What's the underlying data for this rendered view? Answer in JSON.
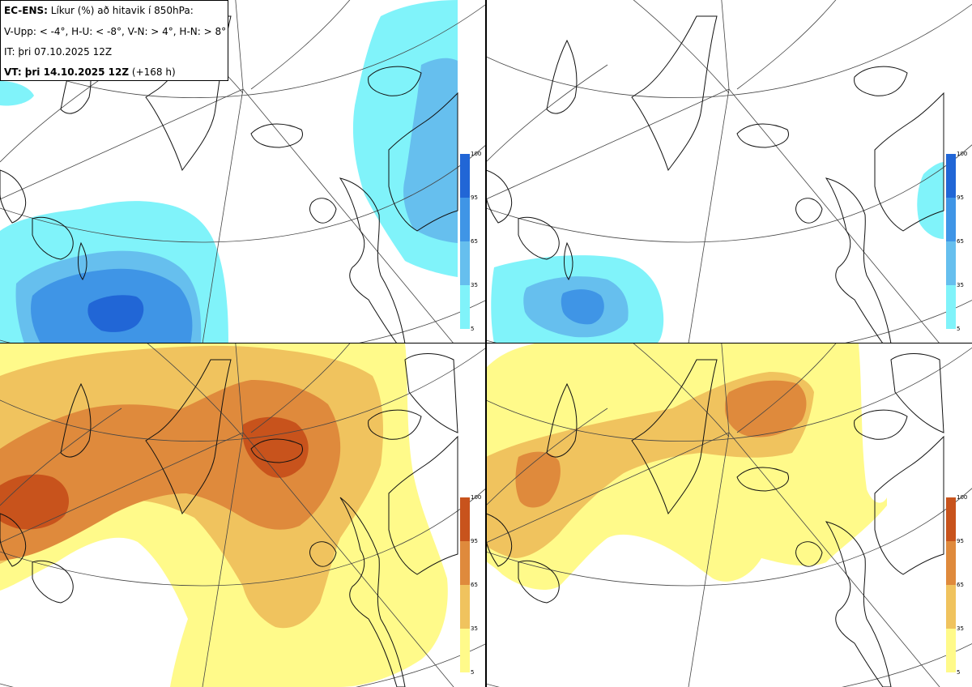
{
  "header": {
    "title_bold": "EC-ENS:",
    "title_rest": " Líkur (%) að hitavik í 850hPa:",
    "legend_line": "V-Upp: < -4°, H-U: < -8°, V-N: > 4°, H-N: > 8°",
    "initial_time": "IT: þri 07.10.2025 12Z",
    "valid_time_bold": "VT: þri 14.10.2025 12Z",
    "valid_time_rest": " (+168 h)"
  },
  "cold_scale": {
    "ticks": [
      "100",
      "95",
      "65",
      "35",
      "5"
    ],
    "colors": [
      "#2166d6",
      "#3f95e6",
      "#66bfee",
      "#80f3fa"
    ]
  },
  "warm_scale": {
    "ticks": [
      "100",
      "95",
      "65",
      "35",
      "5"
    ],
    "colors": [
      "#c8531c",
      "#df8a3c",
      "#f0c35e",
      "#fffa8a"
    ]
  }
}
